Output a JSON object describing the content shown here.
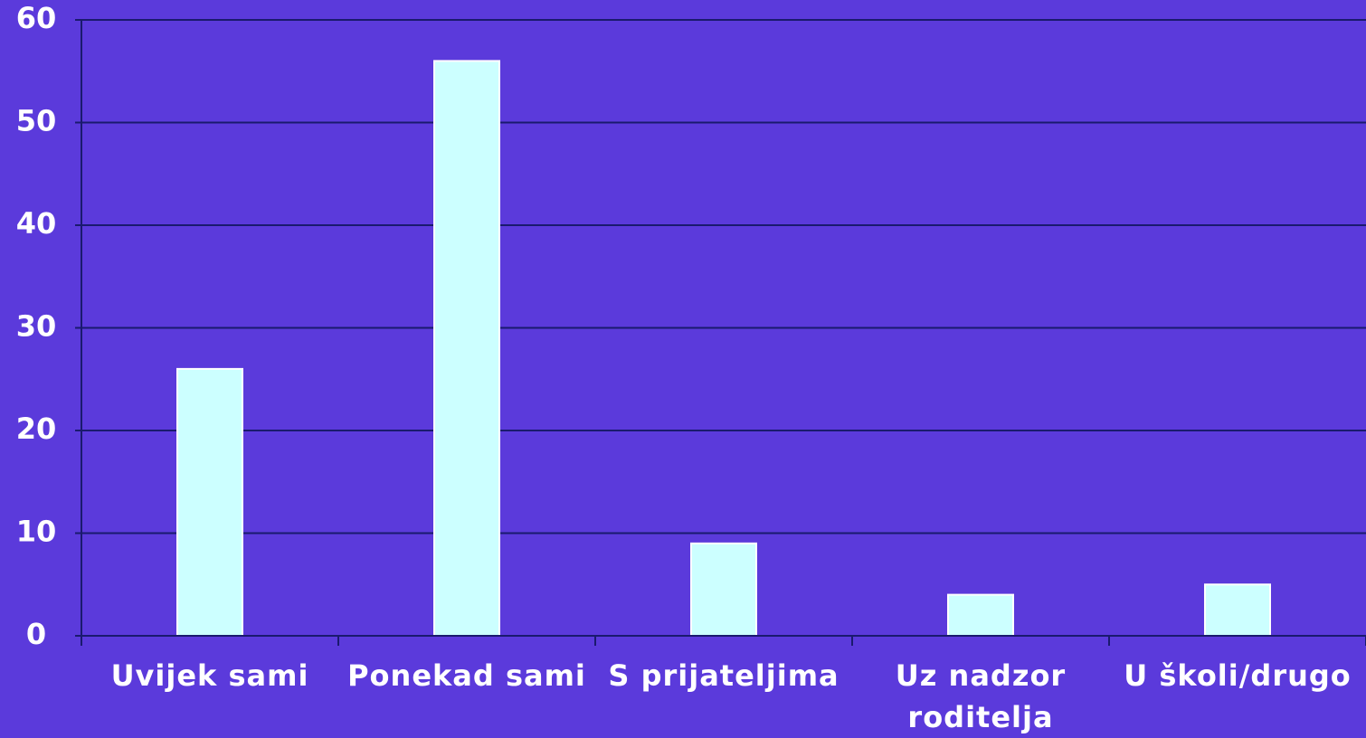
{
  "chart_data": {
    "type": "bar",
    "categories": [
      "Uvijek sami",
      "Ponekad sami",
      "S prijateljima",
      "Uz nadzor roditelja",
      "U školi/drugo"
    ],
    "values": [
      26,
      56,
      9,
      4,
      5
    ],
    "color": "#ccffff",
    "ylim": [
      0,
      60
    ],
    "yticks": [
      0,
      10,
      20,
      30,
      40,
      50,
      60
    ],
    "grid": true
  }
}
